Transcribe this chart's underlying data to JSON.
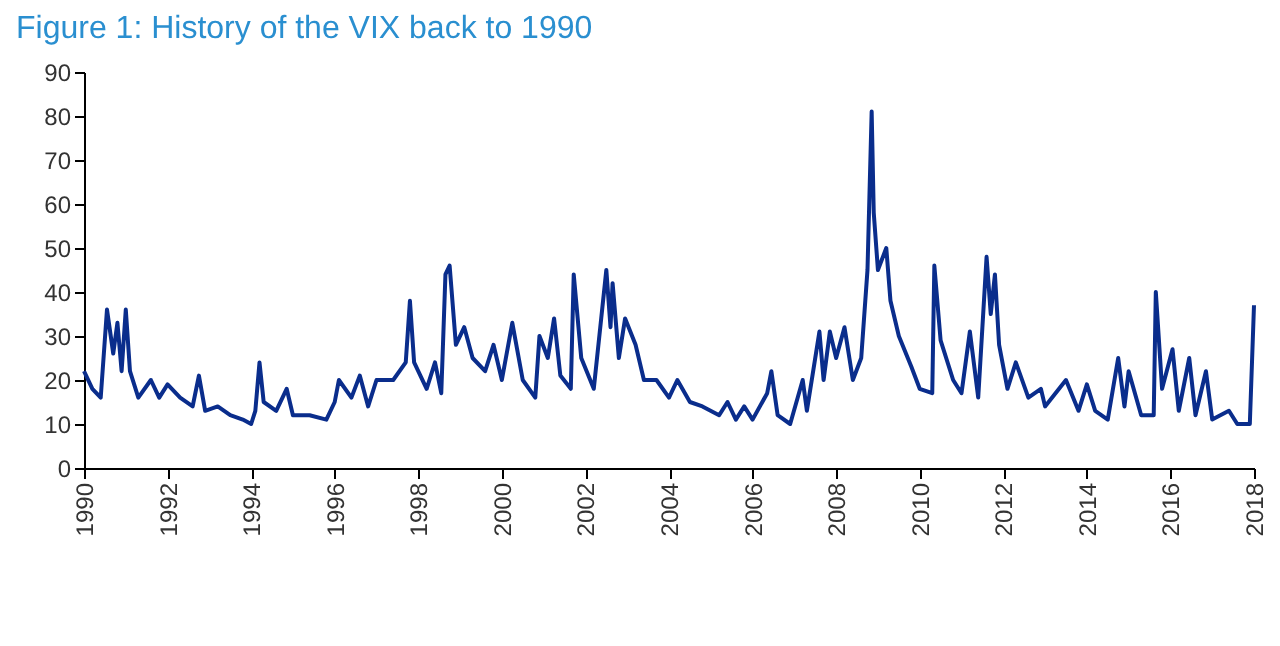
{
  "chart_data": {
    "type": "line",
    "title": "Figure 1: History of the VIX back to 1990",
    "x": [
      1990.0,
      1990.2,
      1990.4,
      1990.55,
      1990.7,
      1990.8,
      1990.9,
      1991.0,
      1991.1,
      1991.3,
      1991.6,
      1991.8,
      1992.0,
      1992.3,
      1992.6,
      1992.75,
      1992.9,
      1993.2,
      1993.5,
      1993.8,
      1994.0,
      1994.1,
      1994.2,
      1994.3,
      1994.6,
      1994.85,
      1995.0,
      1995.4,
      1995.8,
      1996.0,
      1996.1,
      1996.4,
      1996.6,
      1996.8,
      1997.0,
      1997.4,
      1997.7,
      1997.8,
      1997.9,
      1998.2,
      1998.4,
      1998.55,
      1998.65,
      1998.75,
      1998.9,
      1999.1,
      1999.3,
      1999.6,
      1999.8,
      2000.0,
      2000.25,
      2000.5,
      2000.8,
      2000.9,
      2001.1,
      2001.25,
      2001.4,
      2001.65,
      2001.72,
      2001.9,
      2002.2,
      2002.5,
      2002.6,
      2002.65,
      2002.8,
      2002.95,
      2003.2,
      2003.4,
      2003.7,
      2004.0,
      2004.2,
      2004.5,
      2004.8,
      2005.2,
      2005.4,
      2005.6,
      2005.8,
      2006.0,
      2006.35,
      2006.45,
      2006.6,
      2006.9,
      2007.2,
      2007.3,
      2007.6,
      2007.7,
      2007.85,
      2008.0,
      2008.2,
      2008.4,
      2008.6,
      2008.75,
      2008.85,
      2008.9,
      2009.0,
      2009.2,
      2009.3,
      2009.5,
      2009.8,
      2010.0,
      2010.3,
      2010.35,
      2010.5,
      2010.8,
      2011.0,
      2011.2,
      2011.4,
      2011.6,
      2011.7,
      2011.8,
      2011.9,
      2012.1,
      2012.3,
      2012.6,
      2012.9,
      2013.0,
      2013.5,
      2013.8,
      2014.0,
      2014.2,
      2014.5,
      2014.75,
      2014.9,
      2015.0,
      2015.3,
      2015.6,
      2015.65,
      2015.8,
      2016.05,
      2016.2,
      2016.45,
      2016.6,
      2016.85,
      2017.0,
      2017.4,
      2017.6,
      2017.9,
      2018.0
    ],
    "series": [
      {
        "color": "#0a2d8c",
        "values": [
          22,
          18,
          16,
          36,
          26,
          33,
          22,
          36,
          22,
          16,
          20,
          16,
          19,
          16,
          14,
          21,
          13,
          14,
          12,
          11,
          10,
          13,
          24,
          15,
          13,
          18,
          12,
          12,
          11,
          15,
          20,
          16,
          21,
          14,
          20,
          20,
          24,
          38,
          24,
          18,
          24,
          17,
          44,
          46,
          28,
          32,
          25,
          22,
          28,
          20,
          33,
          20,
          16,
          30,
          25,
          34,
          21,
          18,
          44,
          25,
          18,
          45,
          32,
          42,
          25,
          34,
          28,
          20,
          20,
          16,
          20,
          15,
          14,
          12,
          15,
          11,
          14,
          11,
          17,
          22,
          12,
          10,
          20,
          13,
          31,
          20,
          31,
          25,
          32,
          20,
          25,
          45,
          81,
          58,
          45,
          50,
          38,
          30,
          23,
          18,
          17,
          46,
          29,
          20,
          17,
          31,
          16,
          48,
          35,
          44,
          28,
          18,
          24,
          16,
          18,
          14,
          20,
          13,
          19,
          13,
          11,
          25,
          14,
          22,
          12,
          12,
          40,
          18,
          27,
          13,
          25,
          12,
          22,
          11,
          13,
          10,
          10,
          37
        ]
      }
    ],
    "xlim": [
      1990,
      2018
    ],
    "xticks": [
      1990,
      1992,
      1994,
      1996,
      1998,
      2000,
      2002,
      2004,
      2006,
      2008,
      2010,
      2012,
      2014,
      2016,
      2018
    ],
    "ylim": [
      0,
      90
    ],
    "yticks": [
      0,
      10,
      20,
      30,
      40,
      50,
      60,
      70,
      80,
      90
    ],
    "grid": false,
    "legend": false
  }
}
